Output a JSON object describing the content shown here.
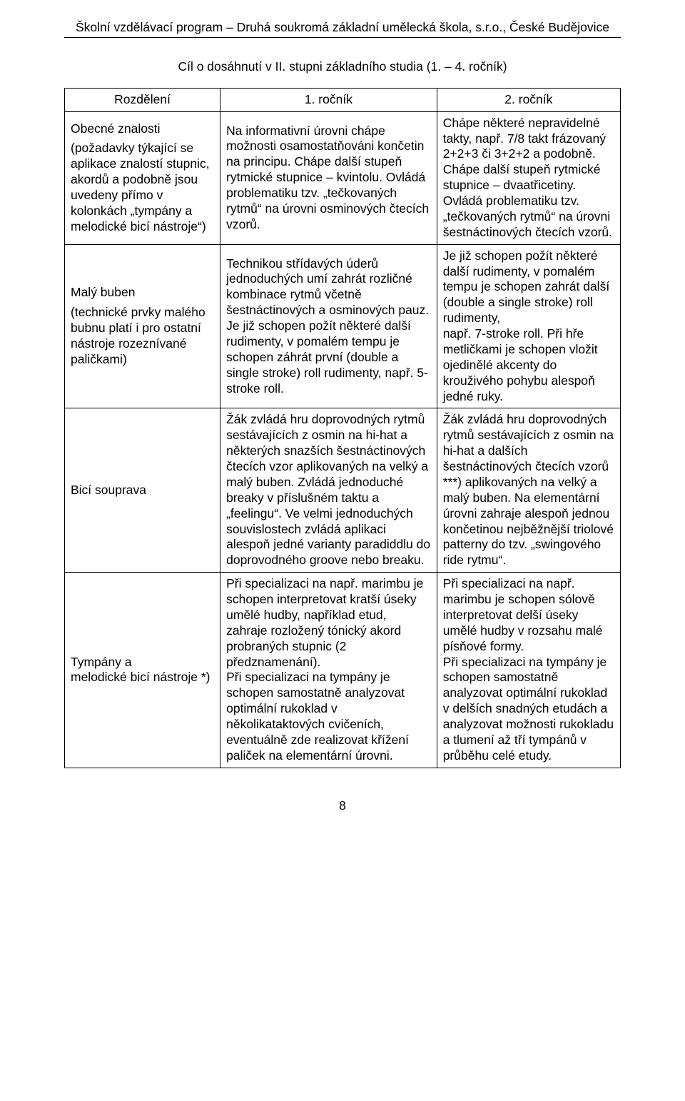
{
  "header": "Školní vzdělávací program – Druhá soukromá základní umělecká škola, s.r.o., České Budějovice",
  "section_title": "Cíl o dosáhnutí v II. stupni základního studia (1. – 4. ročník)",
  "table": {
    "head": {
      "c0": "Rozdělení",
      "c1": "1. ročník",
      "c2": "2. ročník"
    },
    "rows": [
      {
        "label_p1": "Obecné znalosti",
        "label_p2": "(požadavky týkající se aplikace znalostí stupnic, akordů a podobně jsou uvedeny přímo v kolonkách „tympány a melodické bicí nástroje“)",
        "y1": "Na informativní úrovni chápe možnosti osamostatňováni končetin na principu. Chápe další stupeň rytmické stupnice – kvintolu. Ovládá problematiku tzv. „tečkovaných rytmů“ na úrovni osminových čtecích vzorů.",
        "y2": "Chápe některé nepravidelné takty, např. 7/8 takt frázovaný 2+2+3 či 3+2+2 a podobně.\nChápe další stupeň rytmické stupnice – dvaatřicetiny. Ovládá problematiku tzv. „tečkovaných rytmů“ na úrovni šestnáctinových čtecích vzorů."
      },
      {
        "label_p1": "Malý buben",
        "label_p2": "(technické prvky malého bubnu platí i pro ostatní nástroje rozeznívané paličkami)",
        "y1": "Technikou střídavých úderů jednoduchých umí zahrát rozličné kombinace rytmů včetně šestnáctinových a osminových pauz. Je již schopen požít některé další rudimenty, v pomalém tempu je schopen záhrát první (double a single stroke) roll rudimenty, např. 5-stroke roll.",
        "y2": "Je již schopen požít některé další rudimenty, v pomalém tempu je schopen zahrát další (double a single stroke) roll rudimenty,\nnapř. 7-stroke roll. Při hře metličkami je schopen vložit ojedinělé akcenty do krouživého pohybu alespoň jedné ruky."
      },
      {
        "label_p1": "Bicí souprava",
        "label_p2": "",
        "y1": "Žák zvládá hru doprovodných rytmů sestávajících z osmin na hi-hat a některých snazších šestnáctinových čtecích vzor aplikovaných na velký a malý buben. Zvládá jednoduché breaky v příslušném taktu a „feelingu“. Ve velmi jednoduchých souvislostech zvládá aplikaci alespoň jedné varianty paradiddlu do doprovodného groove nebo breaku.",
        "y2": "Žák zvládá hru doprovodných rytmů sestávajících z osmin na hi-hat a dalších šestnáctinových čtecích vzorů ***) aplikovaných na velký a malý buben. Na elementární úrovni zahraje alespoň jednou končetinou nejběžnější triolové patterny do tzv. „swingového ride rytmu“."
      },
      {
        "label_p1": "Tympány a\nmelodické bicí nástroje *)",
        "label_p2": "",
        "y1": "Při specializaci na např. marimbu je schopen interpretovat kratší úseky umělé hudby, například etud, zahraje rozložený tónický akord probraných stupnic (2 předznamenání).\nPři specializaci na tympány je  schopen samostatně analyzovat optimální rukoklad v několikataktových cvičeních, eventuálně zde realizovat křížení paliček na elementární úrovni.",
        "y2": "Při specializaci na např. marimbu je schopen sólově interpretovat delší úseky umělé hudby v rozsahu malé písňové formy.\nPři specializaci na tympány je  schopen samostatně analyzovat optimální rukoklad v delších snadných etudách a analyzovat možnosti rukokladu a tlumení až tří tympánů v průběhu celé etudy."
      }
    ]
  },
  "page_number": "8"
}
